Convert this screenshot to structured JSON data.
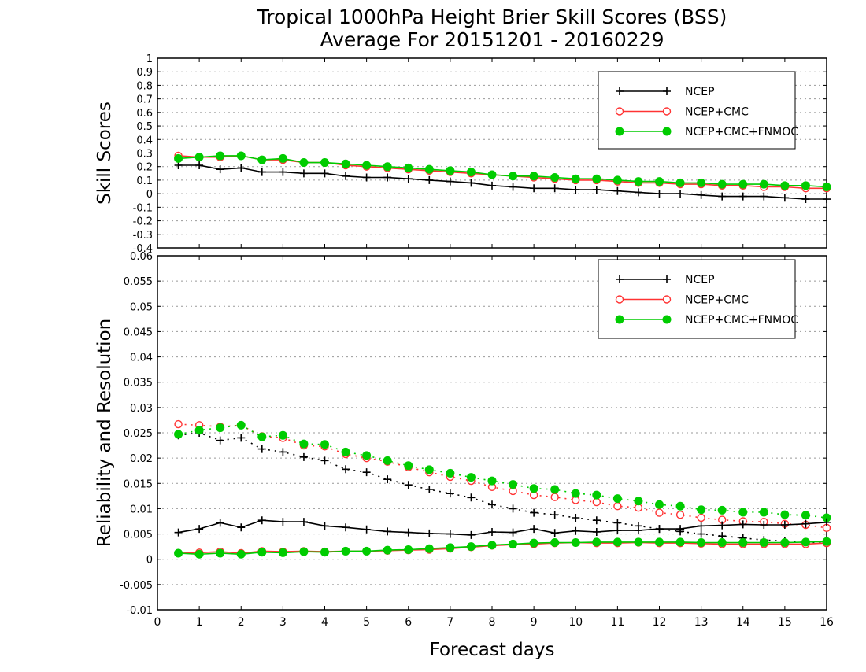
{
  "title": {
    "line1": "Tropical 1000hPa Height Brier Skill Scores (BSS)",
    "line2": "Average For 20151201 - 20160229"
  },
  "xlabel": "Forecast days",
  "colors": {
    "NCEP": "#000000",
    "NCEP+CMC": "#ff3333",
    "NCEP+CMC+FNMOC": "#00cc00",
    "grid": "#999999"
  },
  "chart_data": [
    {
      "type": "line",
      "title": "",
      "xlabel": "Forecast days",
      "ylabel": "Skill Scores",
      "xlim": [
        0,
        16
      ],
      "ylim": [
        -0.4,
        1
      ],
      "xticks": [
        0,
        1,
        2,
        3,
        4,
        5,
        6,
        7,
        8,
        9,
        10,
        11,
        12,
        13,
        14,
        15,
        16
      ],
      "yticks": [
        -0.4,
        -0.3,
        -0.2,
        -0.1,
        0,
        0.1,
        0.2,
        0.3,
        0.4,
        0.5,
        0.6,
        0.7,
        0.8,
        0.9,
        1
      ],
      "ytick_labels": [
        "-0.4",
        "-0.3",
        "-0.2",
        "-0.1",
        "0",
        "0.1",
        "0.2",
        "0.3",
        "0.4",
        "0.5",
        "0.6",
        "0.7",
        "0.8",
        "0.9",
        "1"
      ],
      "grid": "horizontal dotted",
      "legend_position": "top-right",
      "x": [
        0.5,
        1,
        1.5,
        2,
        2.5,
        3,
        3.5,
        4,
        4.5,
        5,
        5.5,
        6,
        6.5,
        7,
        7.5,
        8,
        8.5,
        9,
        9.5,
        10,
        10.5,
        11,
        11.5,
        12,
        12.5,
        13,
        13.5,
        14,
        14.5,
        15,
        15.5,
        16
      ],
      "series": [
        {
          "name": "NCEP",
          "marker": "plus",
          "style": "solid",
          "values": [
            0.21,
            0.21,
            0.18,
            0.19,
            0.16,
            0.16,
            0.15,
            0.15,
            0.13,
            0.12,
            0.12,
            0.11,
            0.1,
            0.09,
            0.08,
            0.06,
            0.05,
            0.04,
            0.04,
            0.03,
            0.03,
            0.02,
            0.01,
            0.0,
            0.0,
            -0.01,
            -0.02,
            -0.02,
            -0.02,
            -0.03,
            -0.04,
            -0.04
          ]
        },
        {
          "name": "NCEP+CMC",
          "marker": "open-circle",
          "style": "solid",
          "values": [
            0.28,
            0.27,
            0.27,
            0.28,
            0.25,
            0.25,
            0.23,
            0.23,
            0.21,
            0.2,
            0.19,
            0.18,
            0.17,
            0.16,
            0.15,
            0.14,
            0.13,
            0.12,
            0.11,
            0.1,
            0.1,
            0.09,
            0.08,
            0.08,
            0.07,
            0.07,
            0.06,
            0.06,
            0.05,
            0.05,
            0.04,
            0.04
          ]
        },
        {
          "name": "NCEP+CMC+FNMOC",
          "marker": "filled-circle",
          "style": "solid",
          "values": [
            0.26,
            0.27,
            0.28,
            0.28,
            0.25,
            0.26,
            0.23,
            0.23,
            0.22,
            0.21,
            0.2,
            0.19,
            0.18,
            0.17,
            0.16,
            0.14,
            0.13,
            0.13,
            0.12,
            0.11,
            0.11,
            0.1,
            0.09,
            0.09,
            0.08,
            0.08,
            0.07,
            0.07,
            0.07,
            0.06,
            0.06,
            0.05
          ]
        }
      ]
    },
    {
      "type": "line",
      "title": "",
      "xlabel": "Forecast days",
      "ylabel": "Reliability and Resolution",
      "xlim": [
        0,
        16
      ],
      "ylim": [
        -0.01,
        0.06
      ],
      "xticks": [
        0,
        1,
        2,
        3,
        4,
        5,
        6,
        7,
        8,
        9,
        10,
        11,
        12,
        13,
        14,
        15,
        16
      ],
      "yticks": [
        -0.01,
        -0.005,
        0,
        0.005,
        0.01,
        0.015,
        0.02,
        0.025,
        0.03,
        0.035,
        0.04,
        0.045,
        0.05,
        0.055,
        0.06
      ],
      "ytick_labels": [
        "-0.01",
        "-0.005",
        "0",
        "0.005",
        "0.01",
        "0.015",
        "0.02",
        "0.025",
        "0.03",
        "0.035",
        "0.04",
        "0.045",
        "0.05",
        "0.055",
        "0.06"
      ],
      "grid": "horizontal dotted",
      "legend_position": "top-right",
      "x": [
        0.5,
        1,
        1.5,
        2,
        2.5,
        3,
        3.5,
        4,
        4.5,
        5,
        5.5,
        6,
        6.5,
        7,
        7.5,
        8,
        8.5,
        9,
        9.5,
        10,
        10.5,
        11,
        11.5,
        12,
        12.5,
        13,
        13.5,
        14,
        14.5,
        15,
        15.5,
        16
      ],
      "series": [
        {
          "name": "NCEP",
          "component": "resolution",
          "marker": "plus",
          "style": "dotted",
          "values": [
            0.0245,
            0.025,
            0.0235,
            0.024,
            0.0218,
            0.0212,
            0.0202,
            0.0195,
            0.0178,
            0.0172,
            0.0158,
            0.0147,
            0.0138,
            0.013,
            0.0122,
            0.0108,
            0.01,
            0.0092,
            0.0088,
            0.0082,
            0.0077,
            0.0072,
            0.0066,
            0.006,
            0.0055,
            0.005,
            0.0046,
            0.0042,
            0.0038,
            0.0036,
            0.0033,
            0.0033
          ]
        },
        {
          "name": "NCEP+CMC",
          "component": "resolution",
          "marker": "open-circle",
          "style": "dotted",
          "values": [
            0.0267,
            0.0265,
            0.0262,
            0.0265,
            0.0243,
            0.024,
            0.0225,
            0.0223,
            0.0208,
            0.02,
            0.0193,
            0.0182,
            0.0172,
            0.0163,
            0.0155,
            0.0143,
            0.0135,
            0.0127,
            0.0123,
            0.0117,
            0.0113,
            0.0105,
            0.0102,
            0.0092,
            0.0088,
            0.0082,
            0.0078,
            0.0075,
            0.0074,
            0.007,
            0.0068,
            0.0062
          ]
        },
        {
          "name": "NCEP+CMC+FNMOC",
          "component": "resolution",
          "marker": "filled-circle",
          "style": "dotted",
          "values": [
            0.0247,
            0.0255,
            0.026,
            0.0265,
            0.0242,
            0.0245,
            0.0228,
            0.0227,
            0.0212,
            0.0205,
            0.0195,
            0.0185,
            0.0177,
            0.017,
            0.0162,
            0.0155,
            0.0148,
            0.014,
            0.0138,
            0.013,
            0.0127,
            0.012,
            0.0115,
            0.0108,
            0.0105,
            0.0098,
            0.0097,
            0.0093,
            0.0093,
            0.0088,
            0.0087,
            0.0082
          ]
        },
        {
          "name": "NCEP",
          "component": "reliability",
          "marker": "plus",
          "style": "solid",
          "values": [
            0.0053,
            0.006,
            0.0072,
            0.0063,
            0.0077,
            0.0074,
            0.0074,
            0.0066,
            0.0063,
            0.0059,
            0.0055,
            0.0053,
            0.0051,
            0.005,
            0.0048,
            0.0054,
            0.0053,
            0.006,
            0.0052,
            0.0056,
            0.0054,
            0.0057,
            0.0057,
            0.006,
            0.006,
            0.0066,
            0.0067,
            0.0069,
            0.0068,
            0.0068,
            0.007,
            0.0073
          ]
        },
        {
          "name": "NCEP+CMC",
          "component": "reliability",
          "marker": "open-circle",
          "style": "solid",
          "values": [
            0.0012,
            0.0013,
            0.0015,
            0.0012,
            0.0016,
            0.0015,
            0.0016,
            0.0015,
            0.0016,
            0.0016,
            0.0017,
            0.0018,
            0.0019,
            0.0021,
            0.0024,
            0.0027,
            0.0029,
            0.003,
            0.0032,
            0.0033,
            0.0032,
            0.0032,
            0.0033,
            0.0032,
            0.0032,
            0.0031,
            0.003,
            0.003,
            0.003,
            0.003,
            0.003,
            0.0032
          ]
        },
        {
          "name": "NCEP+CMC+FNMOC",
          "component": "reliability",
          "marker": "filled-circle",
          "style": "solid",
          "values": [
            0.0012,
            0.001,
            0.0012,
            0.001,
            0.0014,
            0.0013,
            0.0015,
            0.0014,
            0.0016,
            0.0016,
            0.0018,
            0.0019,
            0.0021,
            0.0023,
            0.0025,
            0.0028,
            0.003,
            0.0032,
            0.0033,
            0.0033,
            0.0034,
            0.0034,
            0.0034,
            0.0034,
            0.0034,
            0.0033,
            0.0033,
            0.0033,
            0.0033,
            0.0033,
            0.0034,
            0.0035
          ]
        }
      ]
    }
  ]
}
